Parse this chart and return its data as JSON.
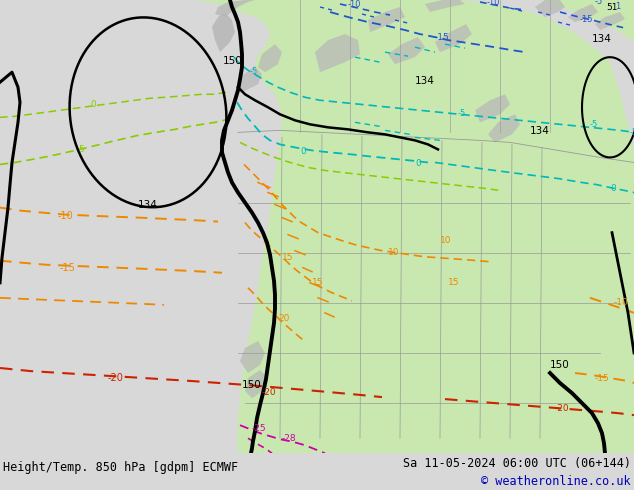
{
  "title_left": "Height/Temp. 850 hPa [gdpm] ECMWF",
  "title_right": "Sa 11-05-2024 06:00 UTC (06+144)",
  "copyright": "© weatheronline.co.uk",
  "bg_color": "#d8d8d8",
  "ocean_color": "#d8d8d8",
  "land_green_color": "#c8e8b0",
  "land_gray_color": "#b8b8b8",
  "bottom_bar_color": "#f0f0f0",
  "title_fontsize": 8.5,
  "copyright_color": "#0000bb",
  "figsize": [
    6.34,
    4.9
  ],
  "dpi": 100
}
